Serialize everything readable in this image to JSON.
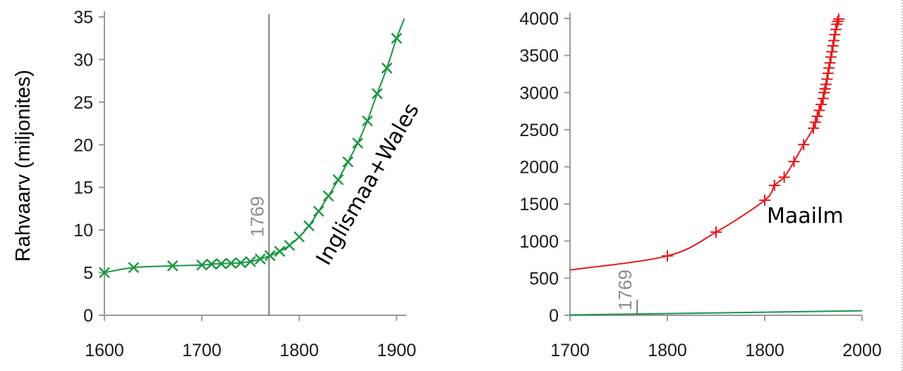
{
  "chart_data": [
    {
      "type": "line",
      "ylabel": "Rahvaarv (miljonites)",
      "xlim": [
        1600,
        1910
      ],
      "ylim": [
        0,
        35
      ],
      "xticks": [
        "1600",
        "1700",
        "1800",
        "1900"
      ],
      "yticks": [
        "0",
        "5",
        "10",
        "15",
        "20",
        "25",
        "30",
        "35"
      ],
      "vline": {
        "x": 1769,
        "label": "1769"
      },
      "series": [
        {
          "name": "Inglismaa+Wales",
          "color": "#1a9641",
          "marker": "x",
          "x": [
            1600,
            1630,
            1670,
            1700,
            1710,
            1720,
            1730,
            1740,
            1750,
            1760,
            1770,
            1780,
            1790,
            1800,
            1810,
            1820,
            1830,
            1840,
            1850,
            1860,
            1870,
            1880,
            1890,
            1900
          ],
          "y": [
            5.0,
            5.6,
            5.8,
            5.9,
            6.0,
            6.05,
            6.1,
            6.15,
            6.3,
            6.6,
            7.0,
            7.5,
            8.2,
            9.2,
            10.5,
            12.2,
            14.0,
            15.9,
            18.0,
            20.2,
            22.8,
            26.0,
            29.0,
            32.5
          ],
          "curve_end": [
            1908,
            34.8
          ]
        }
      ]
    },
    {
      "type": "line",
      "ylabel": "",
      "xlim": [
        1700,
        2000
      ],
      "ylim": [
        0,
        4000
      ],
      "xticks": [
        "1700",
        "1800",
        "1800",
        "2000"
      ],
      "yticks": [
        "0",
        "500",
        "1000",
        "1500",
        "2000",
        "2500",
        "3000",
        "3500",
        "4000"
      ],
      "vline": {
        "x": 1769,
        "label": "1769"
      },
      "series": [
        {
          "name": "Maailm",
          "color": "#e31a1c",
          "marker": "+",
          "x": [
            1800,
            1850,
            1900,
            1910,
            1920,
            1930,
            1940,
            1950,
            1952,
            1954,
            1956,
            1958,
            1960,
            1961,
            1962,
            1963,
            1964,
            1965,
            1966,
            1967,
            1968,
            1969,
            1970,
            1971,
            1972,
            1973,
            1974,
            1975,
            1976
          ],
          "y": [
            800,
            1120,
            1550,
            1750,
            1860,
            2070,
            2300,
            2520,
            2600,
            2680,
            2760,
            2840,
            2920,
            3000,
            3050,
            3110,
            3180,
            3260,
            3330,
            3400,
            3480,
            3550,
            3630,
            3700,
            3780,
            3850,
            3920,
            3960,
            3990
          ],
          "curve_start": [
            1700,
            610
          ]
        },
        {
          "name": "",
          "color": "#1a9641",
          "marker": "none",
          "x": [
            1700,
            2000
          ],
          "y": [
            5,
            60
          ]
        }
      ]
    }
  ]
}
